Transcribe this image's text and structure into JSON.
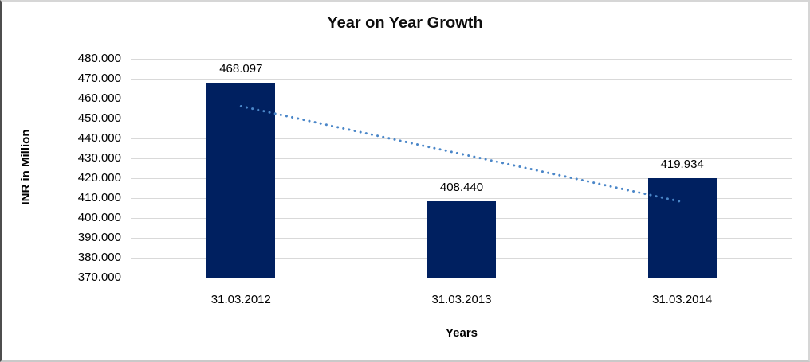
{
  "chart_data": {
    "type": "bar",
    "title": "Year on Year Growth",
    "xlabel": "Years",
    "ylabel": "INR in Million",
    "categories": [
      "31.03.2012",
      "31.03.2013",
      "31.03.2014"
    ],
    "values": [
      468.097,
      408.44,
      419.934
    ],
    "ylim": [
      370,
      480
    ],
    "ytick_step": 10,
    "ytick_decimals": 3,
    "grid": "horizontal",
    "legend": "none",
    "bar_color": "#002060",
    "gridline_color": "#d9d9d9",
    "text_color": "#000000",
    "trendline": {
      "style": "dotted",
      "color": "#4a86c8",
      "start_value": 456.2,
      "end_value": 408.1
    }
  }
}
